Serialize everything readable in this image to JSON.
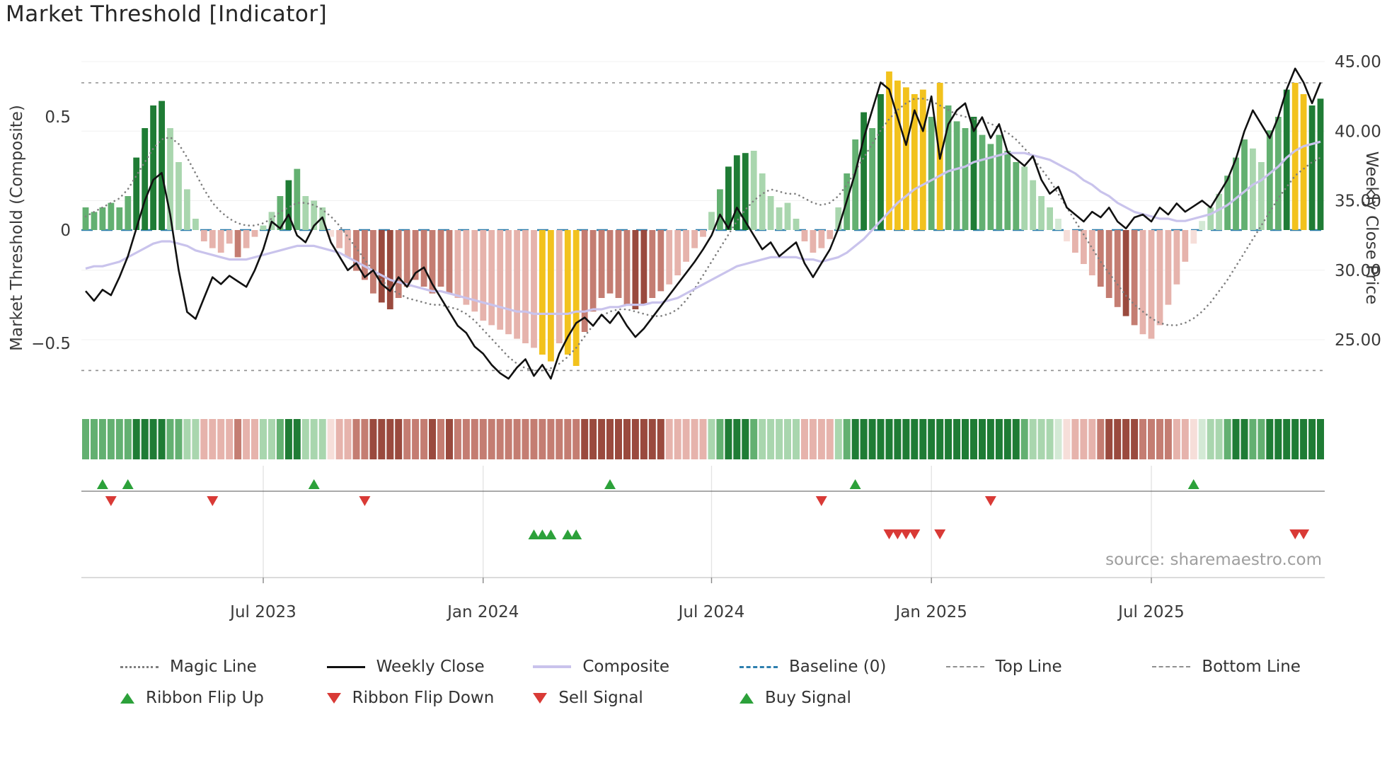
{
  "title": "Market Threshold [Indicator]",
  "source_text": "source: sharemaestro.com",
  "axes": {
    "left_label": "Market Threshold (Composite)",
    "right_label": "Weekly Close Price",
    "left_ticks": [
      {
        "label": "0.5",
        "value": 0.5
      },
      {
        "label": "0",
        "value": 0
      },
      {
        "label": "−0.5",
        "value": -0.5
      }
    ],
    "right_ticks": [
      {
        "label": "45.00",
        "value": 45
      },
      {
        "label": "40.00",
        "value": 40
      },
      {
        "label": "35.00",
        "value": 35
      },
      {
        "label": "30.00",
        "value": 30
      },
      {
        "label": "25.00",
        "value": 25
      }
    ],
    "x_ticks": [
      {
        "label": "Jul 2023",
        "index": 21
      },
      {
        "label": "Jan 2024",
        "index": 47
      },
      {
        "label": "Jul 2024",
        "index": 74
      },
      {
        "label": "Jan 2025",
        "index": 100
      },
      {
        "label": "Jul 2025",
        "index": 126
      }
    ]
  },
  "chart_data": {
    "type": "bar",
    "title": "Market Threshold [Indicator]",
    "xlabel": "",
    "ylabel_left": "Market Threshold (Composite)",
    "ylabel_right": "Weekly Close Price",
    "left_ylim": [
      -0.75,
      0.78
    ],
    "right_ylim": [
      20.5,
      45.5
    ],
    "reference_lines": {
      "baseline": 0,
      "top_line": 0.65,
      "bottom_line": -0.62
    },
    "threshold_bars": [
      0.1,
      0.08,
      0.1,
      0.12,
      0.1,
      0.15,
      0.32,
      0.45,
      0.55,
      0.57,
      0.45,
      0.3,
      0.18,
      0.05,
      -0.05,
      -0.08,
      -0.1,
      -0.06,
      -0.12,
      -0.08,
      -0.03,
      0.02,
      0.08,
      0.15,
      0.22,
      0.27,
      0.15,
      0.13,
      0.1,
      -0.03,
      -0.08,
      -0.12,
      -0.18,
      -0.22,
      -0.28,
      -0.32,
      -0.35,
      -0.3,
      -0.25,
      -0.22,
      -0.25,
      -0.28,
      -0.25,
      -0.28,
      -0.3,
      -0.33,
      -0.36,
      -0.4,
      -0.42,
      -0.44,
      -0.46,
      -0.48,
      -0.5,
      -0.52,
      -0.55,
      -0.58,
      -0.5,
      -0.55,
      -0.6,
      -0.45,
      -0.36,
      -0.3,
      -0.28,
      -0.3,
      -0.33,
      -0.35,
      -0.33,
      -0.3,
      -0.27,
      -0.24,
      -0.2,
      -0.14,
      -0.08,
      -0.03,
      0.08,
      0.18,
      0.28,
      0.33,
      0.34,
      0.35,
      0.25,
      0.15,
      0.1,
      0.12,
      0.05,
      -0.05,
      -0.1,
      -0.08,
      -0.04,
      0.1,
      0.25,
      0.4,
      0.52,
      0.45,
      0.6,
      0.7,
      0.66,
      0.63,
      0.6,
      0.62,
      0.5,
      0.65,
      0.55,
      0.48,
      0.45,
      0.5,
      0.42,
      0.38,
      0.42,
      0.35,
      0.3,
      0.28,
      0.22,
      0.15,
      0.1,
      0.05,
      -0.05,
      -0.1,
      -0.15,
      -0.2,
      -0.25,
      -0.3,
      -0.34,
      -0.38,
      -0.42,
      -0.46,
      -0.48,
      -0.42,
      -0.33,
      -0.24,
      -0.14,
      -0.06,
      0.04,
      0.1,
      0.16,
      0.24,
      0.32,
      0.4,
      0.36,
      0.3,
      0.44,
      0.5,
      0.62,
      0.65,
      0.6,
      0.55,
      0.58
    ],
    "bar_shade": [
      2,
      2,
      2,
      2,
      2,
      2,
      3,
      3,
      3,
      3,
      1,
      1,
      1,
      1,
      1,
      1,
      1,
      1,
      2,
      1,
      1,
      1,
      1,
      2,
      3,
      2,
      1,
      1,
      1,
      0,
      1,
      1,
      2,
      2,
      2,
      3,
      3,
      2,
      2,
      2,
      2,
      2,
      2,
      2,
      1,
      1,
      1,
      1,
      1,
      1,
      1,
      1,
      1,
      1,
      1,
      1,
      1,
      1,
      1,
      2,
      2,
      2,
      2,
      2,
      2,
      3,
      3,
      2,
      2,
      1,
      1,
      1,
      1,
      1,
      1,
      2,
      3,
      3,
      3,
      1,
      1,
      1,
      1,
      1,
      1,
      1,
      1,
      1,
      1,
      1,
      2,
      2,
      3,
      2,
      3,
      2,
      2,
      2,
      2,
      2,
      2,
      2,
      2,
      2,
      2,
      3,
      2,
      2,
      2,
      2,
      2,
      1,
      1,
      1,
      1,
      0,
      0,
      1,
      1,
      1,
      2,
      2,
      2,
      3,
      2,
      1,
      1,
      1,
      1,
      1,
      1,
      0,
      0,
      1,
      1,
      2,
      2,
      2,
      1,
      1,
      2,
      2,
      3,
      3,
      3,
      3,
      3
    ],
    "gold_bar_indices": [
      54,
      55,
      57,
      58,
      95,
      96,
      97,
      98,
      99,
      101,
      143,
      144
    ],
    "series": {
      "weekly_close": [
        28.5,
        27.8,
        28.6,
        28.2,
        29.5,
        31.0,
        33.0,
        35.0,
        36.5,
        37.0,
        34.0,
        30.0,
        27.0,
        26.5,
        28.0,
        29.5,
        29.0,
        29.6,
        29.2,
        28.8,
        30.0,
        31.5,
        33.5,
        33.0,
        34.0,
        32.5,
        32.0,
        33.2,
        33.8,
        32.0,
        31.0,
        30.0,
        30.5,
        29.5,
        30.0,
        29.0,
        28.5,
        29.5,
        28.8,
        29.8,
        30.2,
        29.0,
        28.0,
        27.0,
        26.0,
        25.5,
        24.5,
        24.0,
        23.2,
        22.6,
        22.2,
        23.0,
        23.6,
        22.4,
        23.2,
        22.2,
        24.0,
        25.2,
        26.2,
        26.6,
        26.0,
        26.8,
        26.2,
        27.0,
        26.0,
        25.2,
        25.8,
        26.6,
        27.4,
        28.2,
        29.0,
        29.8,
        30.6,
        31.5,
        32.5,
        34.0,
        33.0,
        34.5,
        33.5,
        32.5,
        31.5,
        32.0,
        31.0,
        31.5,
        32.0,
        30.5,
        29.5,
        30.5,
        31.5,
        33.0,
        35.0,
        37.0,
        39.5,
        41.5,
        43.5,
        43.0,
        41.0,
        39.0,
        41.5,
        40.0,
        42.5,
        38.0,
        40.5,
        41.5,
        42.0,
        40.0,
        41.0,
        39.5,
        40.5,
        38.5,
        38.0,
        37.5,
        38.2,
        36.5,
        35.5,
        36.0,
        34.5,
        34.0,
        33.5,
        34.2,
        33.8,
        34.5,
        33.5,
        33.0,
        33.8,
        34.0,
        33.5,
        34.5,
        34.0,
        34.8,
        34.2,
        34.6,
        35.0,
        34.5,
        35.5,
        36.5,
        38.0,
        40.0,
        41.5,
        40.5,
        39.5,
        41.0,
        43.0,
        44.5,
        43.5,
        42.0,
        43.5
      ],
      "composite": [
        -0.17,
        -0.16,
        -0.16,
        -0.15,
        -0.14,
        -0.12,
        -0.1,
        -0.08,
        -0.06,
        -0.05,
        -0.05,
        -0.06,
        -0.07,
        -0.09,
        -0.1,
        -0.11,
        -0.12,
        -0.13,
        -0.13,
        -0.13,
        -0.12,
        -0.11,
        -0.1,
        -0.09,
        -0.08,
        -0.07,
        -0.07,
        -0.07,
        -0.08,
        -0.09,
        -0.1,
        -0.12,
        -0.14,
        -0.16,
        -0.18,
        -0.2,
        -0.22,
        -0.23,
        -0.24,
        -0.25,
        -0.26,
        -0.27,
        -0.27,
        -0.28,
        -0.29,
        -0.3,
        -0.31,
        -0.32,
        -0.33,
        -0.34,
        -0.35,
        -0.36,
        -0.36,
        -0.37,
        -0.37,
        -0.37,
        -0.37,
        -0.37,
        -0.36,
        -0.36,
        -0.35,
        -0.35,
        -0.34,
        -0.34,
        -0.33,
        -0.33,
        -0.33,
        -0.32,
        -0.32,
        -0.31,
        -0.3,
        -0.28,
        -0.26,
        -0.24,
        -0.22,
        -0.2,
        -0.18,
        -0.16,
        -0.15,
        -0.14,
        -0.13,
        -0.12,
        -0.12,
        -0.12,
        -0.12,
        -0.13,
        -0.13,
        -0.14,
        -0.13,
        -0.12,
        -0.1,
        -0.07,
        -0.04,
        0.0,
        0.04,
        0.08,
        0.12,
        0.15,
        0.18,
        0.2,
        0.22,
        0.24,
        0.26,
        0.27,
        0.28,
        0.3,
        0.31,
        0.32,
        0.33,
        0.34,
        0.34,
        0.34,
        0.33,
        0.32,
        0.31,
        0.29,
        0.27,
        0.25,
        0.22,
        0.2,
        0.17,
        0.15,
        0.12,
        0.1,
        0.08,
        0.07,
        0.06,
        0.05,
        0.05,
        0.04,
        0.04,
        0.05,
        0.06,
        0.07,
        0.09,
        0.11,
        0.14,
        0.17,
        0.2,
        0.22,
        0.25,
        0.28,
        0.32,
        0.35,
        0.37,
        0.38,
        0.39
      ],
      "magic_line": [
        0.06,
        0.08,
        0.1,
        0.12,
        0.14,
        0.18,
        0.24,
        0.3,
        0.36,
        0.4,
        0.41,
        0.38,
        0.32,
        0.25,
        0.18,
        0.12,
        0.08,
        0.05,
        0.03,
        0.02,
        0.02,
        0.03,
        0.05,
        0.08,
        0.1,
        0.12,
        0.12,
        0.11,
        0.09,
        0.06,
        0.02,
        -0.03,
        -0.08,
        -0.13,
        -0.18,
        -0.22,
        -0.26,
        -0.28,
        -0.3,
        -0.31,
        -0.32,
        -0.33,
        -0.33,
        -0.34,
        -0.35,
        -0.37,
        -0.4,
        -0.44,
        -0.48,
        -0.52,
        -0.56,
        -0.59,
        -0.61,
        -0.62,
        -0.62,
        -0.61,
        -0.59,
        -0.56,
        -0.52,
        -0.47,
        -0.42,
        -0.38,
        -0.36,
        -0.35,
        -0.35,
        -0.36,
        -0.37,
        -0.38,
        -0.38,
        -0.37,
        -0.35,
        -0.31,
        -0.26,
        -0.2,
        -0.14,
        -0.08,
        -0.02,
        0.04,
        0.09,
        0.13,
        0.16,
        0.18,
        0.17,
        0.16,
        0.16,
        0.14,
        0.12,
        0.11,
        0.12,
        0.15,
        0.2,
        0.26,
        0.32,
        0.38,
        0.44,
        0.49,
        0.53,
        0.56,
        0.58,
        0.58,
        0.57,
        0.55,
        0.53,
        0.51,
        0.5,
        0.49,
        0.48,
        0.47,
        0.45,
        0.43,
        0.4,
        0.36,
        0.32,
        0.27,
        0.22,
        0.16,
        0.1,
        0.04,
        -0.02,
        -0.08,
        -0.14,
        -0.19,
        -0.24,
        -0.29,
        -0.33,
        -0.36,
        -0.39,
        -0.41,
        -0.42,
        -0.42,
        -0.41,
        -0.39,
        -0.36,
        -0.32,
        -0.27,
        -0.22,
        -0.16,
        -0.1,
        -0.04,
        0.02,
        0.08,
        0.14,
        0.19,
        0.24,
        0.27,
        0.3,
        0.32
      ]
    },
    "signals": {
      "ribbon_flip_up": [
        2,
        5,
        27,
        62,
        91,
        131
      ],
      "ribbon_flip_down": [
        3,
        15,
        33,
        87,
        107
      ],
      "buy": [
        53,
        54,
        55,
        57,
        58
      ],
      "sell": [
        95,
        96,
        97,
        98,
        101,
        143,
        144
      ]
    }
  },
  "legend": {
    "row1": [
      {
        "label": "Magic Line"
      },
      {
        "label": "Weekly Close"
      },
      {
        "label": "Composite"
      },
      {
        "label": "Baseline (0)"
      },
      {
        "label": "Top Line"
      },
      {
        "label": "Bottom Line"
      }
    ],
    "row2": [
      {
        "label": "Ribbon Flip Up"
      },
      {
        "label": "Ribbon Flip Down"
      },
      {
        "label": "Sell Signal"
      },
      {
        "label": "Buy Signal"
      }
    ]
  },
  "colors": {
    "green_shades": [
      "#d3e9d5",
      "#a9d6ae",
      "#63b071",
      "#1f7c35"
    ],
    "red_shades": [
      "#f6ded9",
      "#e6b3ac",
      "#c47d72",
      "#9a4a3e"
    ],
    "gold": "#f2c21d",
    "baseline": "#2e7fae",
    "magic_line": "#7f7f7f",
    "weekly_close": "#111111",
    "composite": "#c9c3ec",
    "reference": "#8f8f8f",
    "signal_green": "#2ca13a",
    "signal_red": "#d93a36"
  }
}
